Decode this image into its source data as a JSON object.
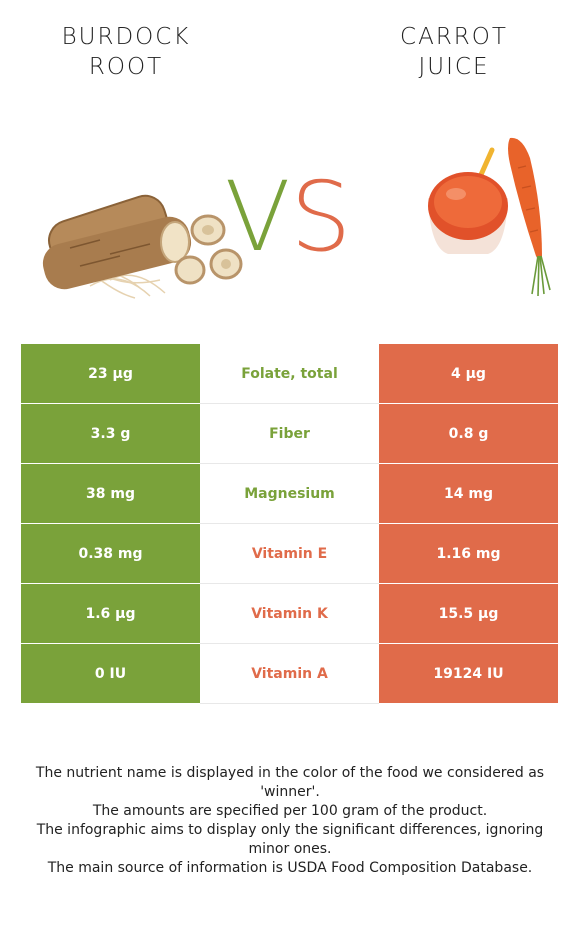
{
  "left_food": {
    "title_line1": "BURDOCK",
    "title_line2": "ROOT",
    "color": "#7aa23a"
  },
  "right_food": {
    "title_line1": "CARROT",
    "title_line2": "JUICE",
    "color": "#e06b4a"
  },
  "vs": {
    "v": "V",
    "s": "S"
  },
  "rows": [
    {
      "nutrient": "Folate, total",
      "left": "23 µg",
      "right": "4 µg",
      "winner": "left"
    },
    {
      "nutrient": "Fiber",
      "left": "3.3 g",
      "right": "0.8 g",
      "winner": "left"
    },
    {
      "nutrient": "Magnesium",
      "left": "38 mg",
      "right": "14 mg",
      "winner": "left"
    },
    {
      "nutrient": "Vitamin E",
      "left": "0.38 mg",
      "right": "1.16 mg",
      "winner": "right"
    },
    {
      "nutrient": "Vitamin K",
      "left": "1.6 µg",
      "right": "15.5 µg",
      "winner": "right"
    },
    {
      "nutrient": "Vitamin A",
      "left": "0 IU",
      "right": "19124 IU",
      "winner": "right"
    }
  ],
  "footer": {
    "line1": "The nutrient name is displayed in the color of the food we considered as 'winner'.",
    "line2": "The amounts are specified per 100 gram of the product.",
    "line3": "The infographic aims to display only the significant differences, ignoring minor ones.",
    "line4": "The main source of information is USDA Food Composition Database."
  }
}
